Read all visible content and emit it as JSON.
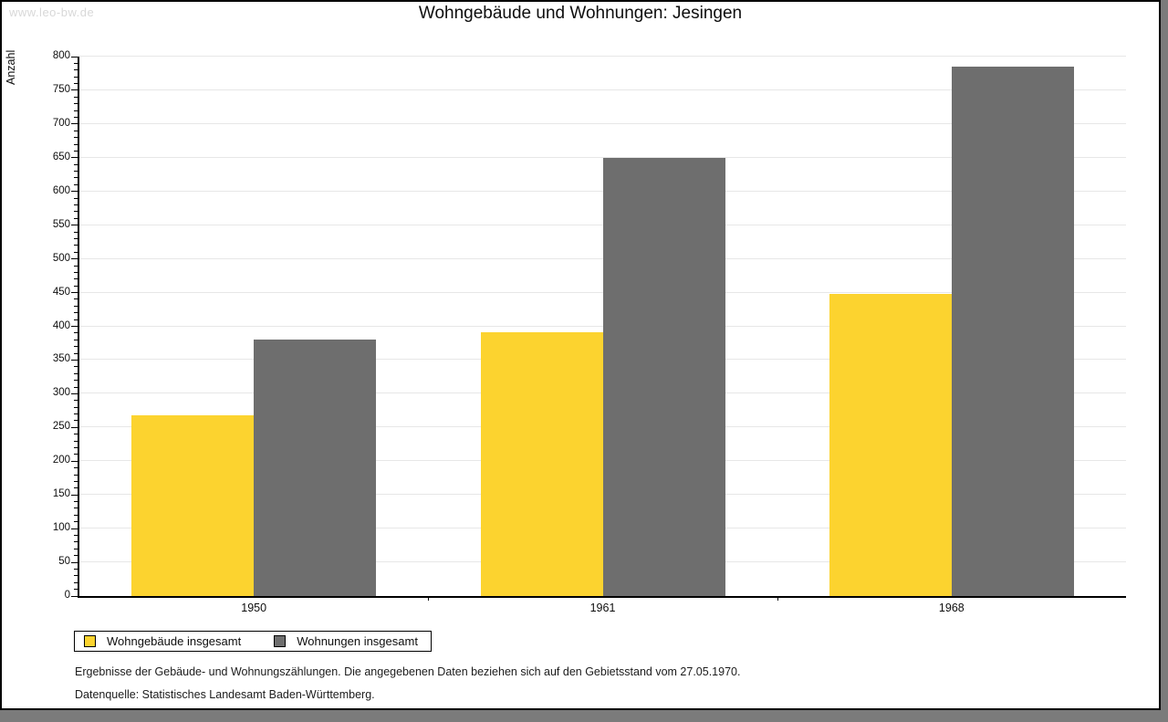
{
  "watermark": "www.leo-bw.de",
  "title": "Wohngebäude und Wohnungen: Jesingen",
  "chart_data": {
    "type": "bar",
    "title": "Wohngebäude und Wohnungen: Jesingen",
    "ylabel": "Anzahl",
    "xlabel": "",
    "categories": [
      "1950",
      "1961",
      "1968"
    ],
    "series": [
      {
        "name": "Wohngebäude insgesamt",
        "color": "#FCD32F",
        "values": [
          268,
          391,
          448
        ]
      },
      {
        "name": "Wohnungen insgesamt",
        "color": "#6E6E6E",
        "values": [
          380,
          650,
          785
        ]
      }
    ],
    "ylim": [
      0,
      800
    ],
    "ytick_step": 50,
    "minor_tick_step": 10,
    "grid": true,
    "legend_position": "bottom-left"
  },
  "colors": {
    "bar_yellow": "#FCD32F",
    "bar_gray": "#6E6E6E",
    "gridline": "#e7e7e7",
    "watermark": "#d8d8d8",
    "shadow": "#7b7b7b"
  },
  "footer": {
    "line1": "Ergebnisse der Gebäude- und Wohnungszählungen. Die angegebenen Daten beziehen sich auf den Gebietsstand vom 27.05.1970.",
    "line2": "Datenquelle: Statistisches Landesamt Baden-Württemberg."
  }
}
